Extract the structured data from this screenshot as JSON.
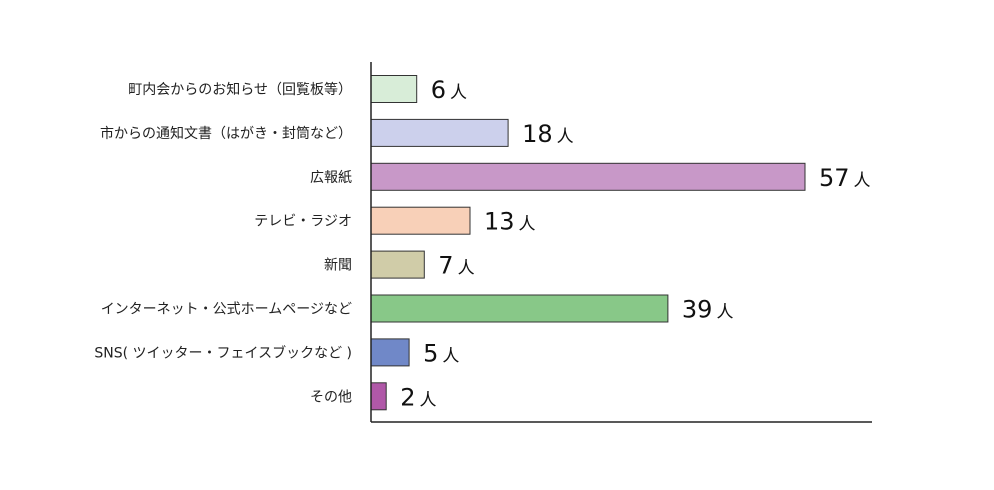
{
  "chart_data": {
    "type": "bar",
    "orientation": "horizontal",
    "categories": [
      "町内会からのお知らせ（回覧板等）",
      "市からの通知文書（はがき・封筒など）",
      "広報紙",
      "テレビ・ラジオ",
      "新聞",
      "インターネット・公式ホームページなど",
      "SNS( ツイッター・フェイスブックなど )",
      "その他"
    ],
    "values": [
      6,
      18,
      57,
      13,
      7,
      39,
      5,
      2
    ],
    "unit": "人",
    "colors": [
      "#d8edd8",
      "#ccd0ec",
      "#c898c8",
      "#f8d0b8",
      "#d0cca8",
      "#88c888",
      "#7088c8",
      "#b058a8"
    ],
    "xlim": [
      0,
      66
    ],
    "grid": false,
    "legend": "none"
  }
}
